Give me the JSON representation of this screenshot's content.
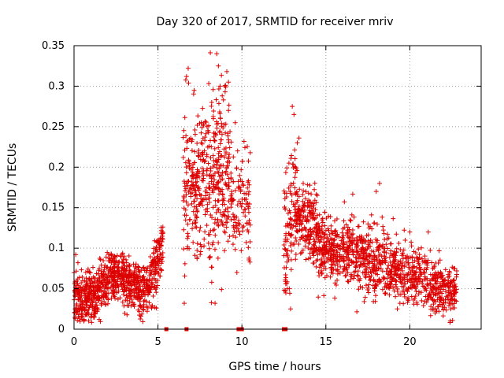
{
  "chart_data": {
    "type": "scatter",
    "title": "Day 320 of 2017, SRMTID for receiver mriv",
    "xlabel": "GPS time / hours",
    "ylabel": "SRMTID / TECUs",
    "xlim": [
      0,
      24.25
    ],
    "ylim": [
      0,
      0.35
    ],
    "xticks": [
      0,
      5,
      10,
      15,
      20
    ],
    "xtick_labels": [
      "0",
      "5",
      "10",
      "15",
      "20"
    ],
    "yticks": [
      0,
      0.05,
      0.1,
      0.15,
      0.2,
      0.25,
      0.3,
      0.35
    ],
    "ytick_labels": [
      "0",
      "0.05",
      "0.1",
      "0.15",
      "0.2",
      "0.25",
      "0.3",
      "0.35"
    ],
    "grid": true,
    "legend": "none",
    "marker": "plus",
    "color": "#dd0000",
    "series": [
      {
        "name": "SRMTID",
        "segments": [
          {
            "x": [
              0,
              1.2
            ],
            "y": [
              0.038,
              0.04
            ],
            "spread": 0.016,
            "count": 220,
            "seed": 11
          },
          {
            "x": [
              1.2,
              2.2
            ],
            "y": [
              0.04,
              0.065
            ],
            "spread": 0.016,
            "count": 170,
            "seed": 12
          },
          {
            "x": [
              2.2,
              3.0
            ],
            "y": [
              0.068,
              0.062
            ],
            "spread": 0.014,
            "count": 150,
            "seed": 13
          },
          {
            "x": [
              3.0,
              4.5
            ],
            "y": [
              0.058,
              0.05
            ],
            "spread": 0.016,
            "count": 240,
            "seed": 14
          },
          {
            "x": [
              4.5,
              5.3
            ],
            "y": [
              0.06,
              0.105
            ],
            "spread": 0.018,
            "count": 130,
            "seed": 15
          },
          {
            "x": [
              6.5,
              8.0
            ],
            "y": [
              0.17,
              0.19
            ],
            "spread": 0.045,
            "count": 220,
            "seed": 21
          },
          {
            "x": [
              8.0,
              9.3
            ],
            "y": [
              0.18,
              0.19
            ],
            "spread": 0.05,
            "count": 220,
            "seed": 22
          },
          {
            "x": [
              9.3,
              10.5
            ],
            "y": [
              0.17,
              0.15
            ],
            "spread": 0.03,
            "count": 110,
            "seed": 23
          },
          {
            "x": [
              12.5,
              13.2
            ],
            "y": [
              0.1,
              0.16
            ],
            "spread": 0.04,
            "count": 100,
            "seed": 31
          },
          {
            "x": [
              13.2,
              14.5
            ],
            "y": [
              0.14,
              0.12
            ],
            "spread": 0.025,
            "count": 200,
            "seed": 32
          },
          {
            "x": [
              14.5,
              16.5
            ],
            "y": [
              0.105,
              0.095
            ],
            "spread": 0.02,
            "count": 280,
            "seed": 33
          },
          {
            "x": [
              16.5,
              18.5
            ],
            "y": [
              0.09,
              0.085
            ],
            "spread": 0.022,
            "count": 260,
            "seed": 34
          },
          {
            "x": [
              18.5,
              21.0
            ],
            "y": [
              0.075,
              0.06
            ],
            "spread": 0.02,
            "count": 300,
            "seed": 35
          },
          {
            "x": [
              21.0,
              22.8
            ],
            "y": [
              0.055,
              0.045
            ],
            "spread": 0.016,
            "count": 220,
            "seed": 36
          }
        ],
        "points": [
          [
            8.5,
            0.34
          ],
          [
            8.6,
            0.325
          ],
          [
            6.8,
            0.322
          ],
          [
            6.7,
            0.312
          ],
          [
            9.1,
            0.318
          ],
          [
            9.2,
            0.305
          ],
          [
            8.7,
            0.3
          ],
          [
            9.0,
            0.293
          ],
          [
            8.9,
            0.283
          ],
          [
            8.2,
            0.28
          ],
          [
            9.2,
            0.27
          ],
          [
            8.3,
            0.26
          ],
          [
            9.6,
            0.255
          ],
          [
            7.2,
            0.246
          ],
          [
            13.0,
            0.275
          ],
          [
            13.1,
            0.265
          ],
          [
            13.4,
            0.236
          ],
          [
            13.3,
            0.23
          ],
          [
            12.8,
            0.205
          ],
          [
            13.2,
            0.2
          ],
          [
            18.2,
            0.18
          ],
          [
            18.0,
            0.17
          ],
          [
            20.0,
            0.12
          ],
          [
            21.1,
            0.12
          ],
          [
            12.9,
            0.025
          ],
          [
            12.7,
            0.05
          ],
          [
            8.4,
            0.032
          ],
          [
            8.2,
            0.058
          ],
          [
            9.7,
            0.07
          ],
          [
            1.5,
            0.012
          ],
          [
            0.1,
            0.092
          ]
        ]
      },
      {
        "name": "zero-level",
        "x": [
          5.5,
          6.7,
          9.8,
          9.9,
          10.0,
          12.5,
          12.6
        ],
        "y": [
          0,
          0,
          0,
          0,
          0,
          0,
          0
        ],
        "marker": "square"
      }
    ]
  }
}
